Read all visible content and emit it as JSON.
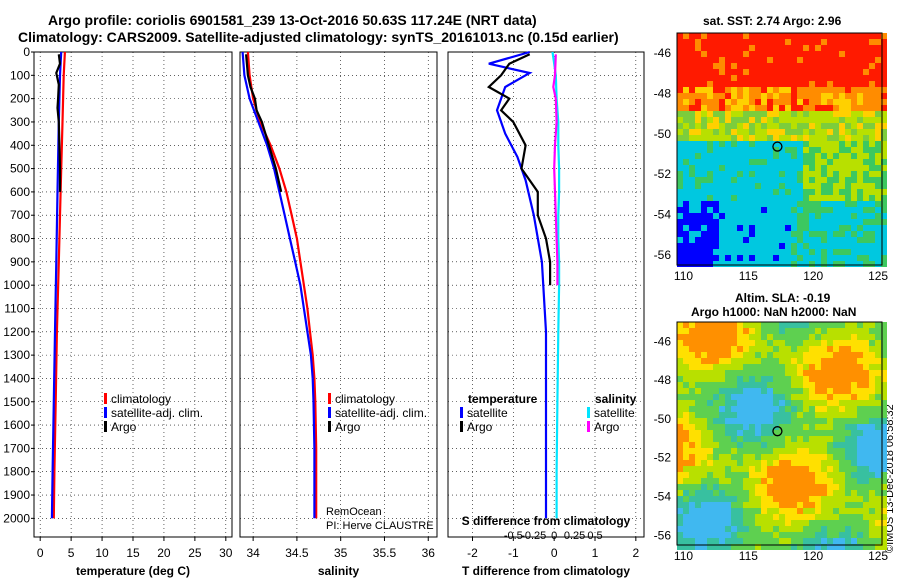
{
  "title_line1": "Argo profile: coriolis 6901581_239 13-Oct-2016 50.63S 117.24E (NRT data)",
  "title_line2": "Climatology: CARS2009. Satellite-adjusted climatology: synTS_20161013.nc (0.15d earlier)",
  "sst_title": "sat. SST: 2.74 Argo: 2.96",
  "ssh_title1": "Altim. SLA: -0.19",
  "ssh_title2": "Argo h1000: NaN h2000: NaN",
  "credit": "RemOcean\nPI: Herve CLAUSTRE",
  "imos_stamp": "©IMOS 13-Dec-2018 06:58:32",
  "colors": {
    "climatology": "#ff0000",
    "satellite": "#0000ff",
    "argo": "#000000",
    "sat_salinity": "#00e5ff",
    "argo_salinity": "#ff00ff"
  },
  "chart_data": [
    {
      "type": "line",
      "xlabel": "temperature (deg C)",
      "ylabel": "",
      "xlim": [
        -1,
        31
      ],
      "ylim": [
        2080,
        0
      ],
      "xticks": [
        0,
        5,
        10,
        15,
        20,
        25,
        30
      ],
      "yticks": [
        0,
        100,
        200,
        300,
        400,
        500,
        600,
        700,
        800,
        900,
        1000,
        1100,
        1200,
        1300,
        1400,
        1500,
        1600,
        1700,
        1800,
        1900,
        2000
      ],
      "legend": [
        "climatology",
        "satellite-adj. clim.",
        "Argo"
      ],
      "series": [
        {
          "name": "climatology",
          "color": "#ff0000",
          "points": [
            [
              4.0,
              0
            ],
            [
              3.8,
              100
            ],
            [
              3.6,
              300
            ],
            [
              3.3,
              600
            ],
            [
              3.0,
              900
            ],
            [
              2.7,
              1200
            ],
            [
              2.5,
              1500
            ],
            [
              2.3,
              1800
            ],
            [
              2.2,
              2000
            ]
          ]
        },
        {
          "name": "satellite-adj. clim.",
          "color": "#0000ff",
          "points": [
            [
              3.4,
              0
            ],
            [
              3.2,
              100
            ],
            [
              3.0,
              300
            ],
            [
              2.8,
              600
            ],
            [
              2.6,
              900
            ],
            [
              2.4,
              1200
            ],
            [
              2.2,
              1500
            ],
            [
              2.0,
              1800
            ],
            [
              1.9,
              2000
            ]
          ]
        },
        {
          "name": "Argo",
          "color": "#000000",
          "points": [
            [
              3.0,
              10
            ],
            [
              3.2,
              50
            ],
            [
              2.6,
              90
            ],
            [
              3.0,
              140
            ],
            [
              2.9,
              200
            ],
            [
              2.8,
              240
            ],
            [
              3.0,
              300
            ],
            [
              3.1,
              400
            ],
            [
              3.2,
              500
            ],
            [
              3.2,
              600
            ]
          ]
        }
      ]
    },
    {
      "type": "line",
      "xlabel": "salinity",
      "xlim": [
        33.85,
        36.1
      ],
      "ylim": [
        2080,
        0
      ],
      "xticks": [
        34,
        34.5,
        35,
        35.5,
        36
      ],
      "xticklabels": [
        "34",
        "34.5",
        "35",
        "35.5",
        "36"
      ],
      "legend": [
        "climatology",
        "satellite-adj. clim.",
        "Argo"
      ],
      "series": [
        {
          "name": "climatology",
          "color": "#ff0000",
          "points": [
            [
              33.94,
              0
            ],
            [
              33.96,
              100
            ],
            [
              34.0,
              200
            ],
            [
              34.08,
              300
            ],
            [
              34.2,
              400
            ],
            [
              34.3,
              500
            ],
            [
              34.38,
              600
            ],
            [
              34.44,
              700
            ],
            [
              34.5,
              800
            ],
            [
              34.54,
              900
            ],
            [
              34.58,
              1000
            ],
            [
              34.62,
              1100
            ],
            [
              34.65,
              1200
            ],
            [
              34.68,
              1300
            ],
            [
              34.7,
              1400
            ],
            [
              34.71,
              1500
            ],
            [
              34.72,
              1700
            ],
            [
              34.72,
              2000
            ]
          ]
        },
        {
          "name": "satellite-adj. clim.",
          "color": "#0000ff",
          "points": [
            [
              33.88,
              0
            ],
            [
              33.9,
              100
            ],
            [
              33.96,
              200
            ],
            [
              34.06,
              300
            ],
            [
              34.16,
              400
            ],
            [
              34.24,
              500
            ],
            [
              34.3,
              600
            ],
            [
              34.36,
              700
            ],
            [
              34.42,
              800
            ],
            [
              34.48,
              900
            ],
            [
              34.54,
              1000
            ],
            [
              34.58,
              1100
            ],
            [
              34.62,
              1200
            ],
            [
              34.66,
              1300
            ],
            [
              34.68,
              1400
            ],
            [
              34.69,
              1500
            ],
            [
              34.7,
              1700
            ],
            [
              34.7,
              2000
            ]
          ]
        },
        {
          "name": "Argo",
          "color": "#000000",
          "points": [
            [
              33.92,
              10
            ],
            [
              33.94,
              100
            ],
            [
              33.97,
              150
            ],
            [
              34.02,
              200
            ],
            [
              34.04,
              250
            ],
            [
              34.1,
              300
            ],
            [
              34.18,
              400
            ],
            [
              34.26,
              500
            ],
            [
              34.32,
              600
            ]
          ]
        }
      ]
    },
    {
      "type": "line",
      "xlabel": "T difference from climatology",
      "xlim": [
        -2.6,
        2.2
      ],
      "ylim": [
        2080,
        0
      ],
      "xticks": [
        -2,
        -1,
        0,
        1,
        2
      ],
      "xticklabels": [
        "-2",
        "-1",
        "0",
        "1",
        "2"
      ],
      "top_axis_label": "S difference from climatology",
      "top_xticks": [
        -0.5,
        -0.25,
        0,
        0.25,
        0.5
      ],
      "top_xticklabels": [
        "-0.5",
        "-0.25",
        "0",
        "0.25",
        "0.5"
      ],
      "legend_temperature": [
        "temperature",
        "satellite",
        "Argo"
      ],
      "legend_salinity": [
        "salinity",
        "satellite",
        "Argo"
      ],
      "series": [
        {
          "name": "T satellite",
          "color": "#0000ff",
          "points": [
            [
              -0.6,
              0
            ],
            [
              -1.6,
              50
            ],
            [
              -0.6,
              90
            ],
            [
              -1.2,
              150
            ],
            [
              -1.4,
              250
            ],
            [
              -1.2,
              350
            ],
            [
              -0.9,
              450
            ],
            [
              -0.7,
              550
            ],
            [
              -0.5,
              700
            ],
            [
              -0.3,
              900
            ],
            [
              -0.2,
              1200
            ],
            [
              -0.2,
              1600
            ],
            [
              -0.2,
              2000
            ]
          ]
        },
        {
          "name": "T Argo",
          "color": "#000000",
          "points": [
            [
              -0.6,
              10
            ],
            [
              -1.1,
              50
            ],
            [
              -1.3,
              100
            ],
            [
              -1.6,
              150
            ],
            [
              -1.1,
              200
            ],
            [
              -1.3,
              250
            ],
            [
              -1.0,
              300
            ],
            [
              -0.7,
              400
            ],
            [
              -0.8,
              500
            ],
            [
              -0.4,
              600
            ],
            [
              -0.4,
              700
            ],
            [
              -0.2,
              800
            ],
            [
              -0.1,
              900
            ],
            [
              -0.1,
              1000
            ]
          ]
        },
        {
          "name": "S satellite",
          "color": "#00e5ff",
          "points": [
            [
              -0.02,
              0
            ],
            [
              0.0,
              50
            ],
            [
              0.02,
              100
            ],
            [
              0.03,
              200
            ],
            [
              0.05,
              300
            ],
            [
              0.05,
              400
            ],
            [
              0.06,
              500
            ],
            [
              0.06,
              600
            ],
            [
              0.05,
              700
            ],
            [
              0.05,
              800
            ],
            [
              0.06,
              900
            ],
            [
              0.06,
              1000
            ],
            [
              0.05,
              1200
            ],
            [
              0.04,
              1500
            ],
            [
              0.03,
              1800
            ],
            [
              0.03,
              2000
            ]
          ]
        },
        {
          "name": "S Argo",
          "color": "#ff00ff",
          "points": [
            [
              0.02,
              10
            ],
            [
              0.01,
              100
            ],
            [
              -0.01,
              150
            ],
            [
              0.02,
              200
            ],
            [
              0.03,
              300
            ],
            [
              0.01,
              400
            ],
            [
              0.0,
              500
            ],
            [
              0.01,
              600
            ],
            [
              0.02,
              700
            ],
            [
              0.03,
              800
            ],
            [
              0.04,
              900
            ],
            [
              0.04,
              1000
            ]
          ]
        }
      ]
    },
    {
      "type": "heatmap",
      "title": "sat. SST: 2.74 Argo: 2.96",
      "xlim": [
        109.5,
        125.3
      ],
      "ylim": [
        -56.5,
        -45
      ],
      "xticks": [
        110,
        115,
        120,
        125
      ],
      "yticks": [
        -46,
        -48,
        -50,
        -52,
        -54,
        -56
      ],
      "argo_position": [
        117.24,
        -50.63
      ]
    },
    {
      "type": "heatmap",
      "title": "Altim. SLA: -0.19",
      "xlim": [
        109.5,
        125.3
      ],
      "ylim": [
        -56.5,
        -45
      ],
      "xticks": [
        110,
        115,
        120,
        125
      ],
      "yticks": [
        -46,
        -48,
        -50,
        -52,
        -54,
        -56
      ],
      "argo_position": [
        117.24,
        -50.63
      ]
    }
  ]
}
